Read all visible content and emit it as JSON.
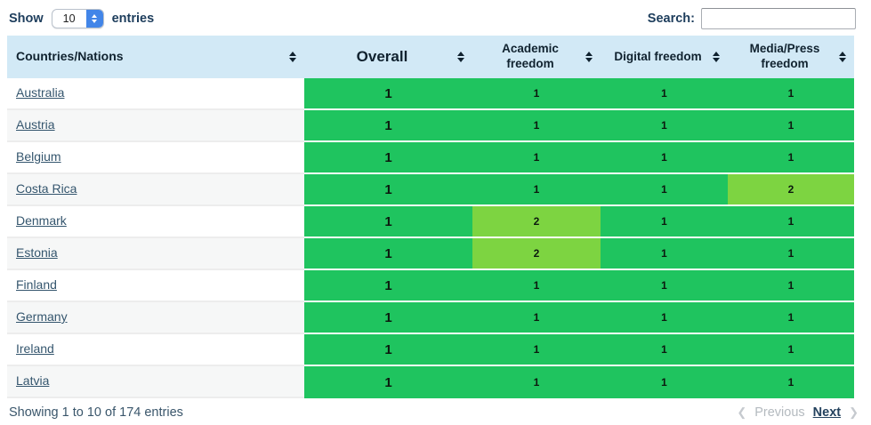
{
  "controls": {
    "show_label": "Show",
    "entries_value": "10",
    "entries_label": "entries",
    "search_label": "Search:",
    "search_value": ""
  },
  "table": {
    "columns": [
      {
        "label": "Countries/Nations"
      },
      {
        "label": "Overall"
      },
      {
        "label": "Academic freedom"
      },
      {
        "label": "Digital freedom"
      },
      {
        "label": "Media/Press freedom"
      }
    ],
    "rows": [
      {
        "country": "Australia",
        "overall": "1",
        "academic": "1",
        "digital": "1",
        "media": "1"
      },
      {
        "country": "Austria",
        "overall": "1",
        "academic": "1",
        "digital": "1",
        "media": "1"
      },
      {
        "country": "Belgium",
        "overall": "1",
        "academic": "1",
        "digital": "1",
        "media": "1"
      },
      {
        "country": "Costa Rica",
        "overall": "1",
        "academic": "1",
        "digital": "1",
        "media": "2"
      },
      {
        "country": "Denmark",
        "overall": "1",
        "academic": "2",
        "digital": "1",
        "media": "1"
      },
      {
        "country": "Estonia",
        "overall": "1",
        "academic": "2",
        "digital": "1",
        "media": "1"
      },
      {
        "country": "Finland",
        "overall": "1",
        "academic": "1",
        "digital": "1",
        "media": "1"
      },
      {
        "country": "Germany",
        "overall": "1",
        "academic": "1",
        "digital": "1",
        "media": "1"
      },
      {
        "country": "Ireland",
        "overall": "1",
        "academic": "1",
        "digital": "1",
        "media": "1"
      },
      {
        "country": "Latvia",
        "overall": "1",
        "academic": "1",
        "digital": "1",
        "media": "1"
      }
    ]
  },
  "footer": {
    "summary": "Showing 1 to 10 of 174 entries",
    "previous_label": "Previous",
    "next_label": "Next",
    "prev_chevron": "❮",
    "next_chevron": "❯"
  },
  "colors": {
    "score_1": "#1fc45f",
    "score_2": "#7dd441",
    "header_bg": "#d2e9f6",
    "stepper_blue": "#4285e8",
    "link_text": "#35566e"
  }
}
